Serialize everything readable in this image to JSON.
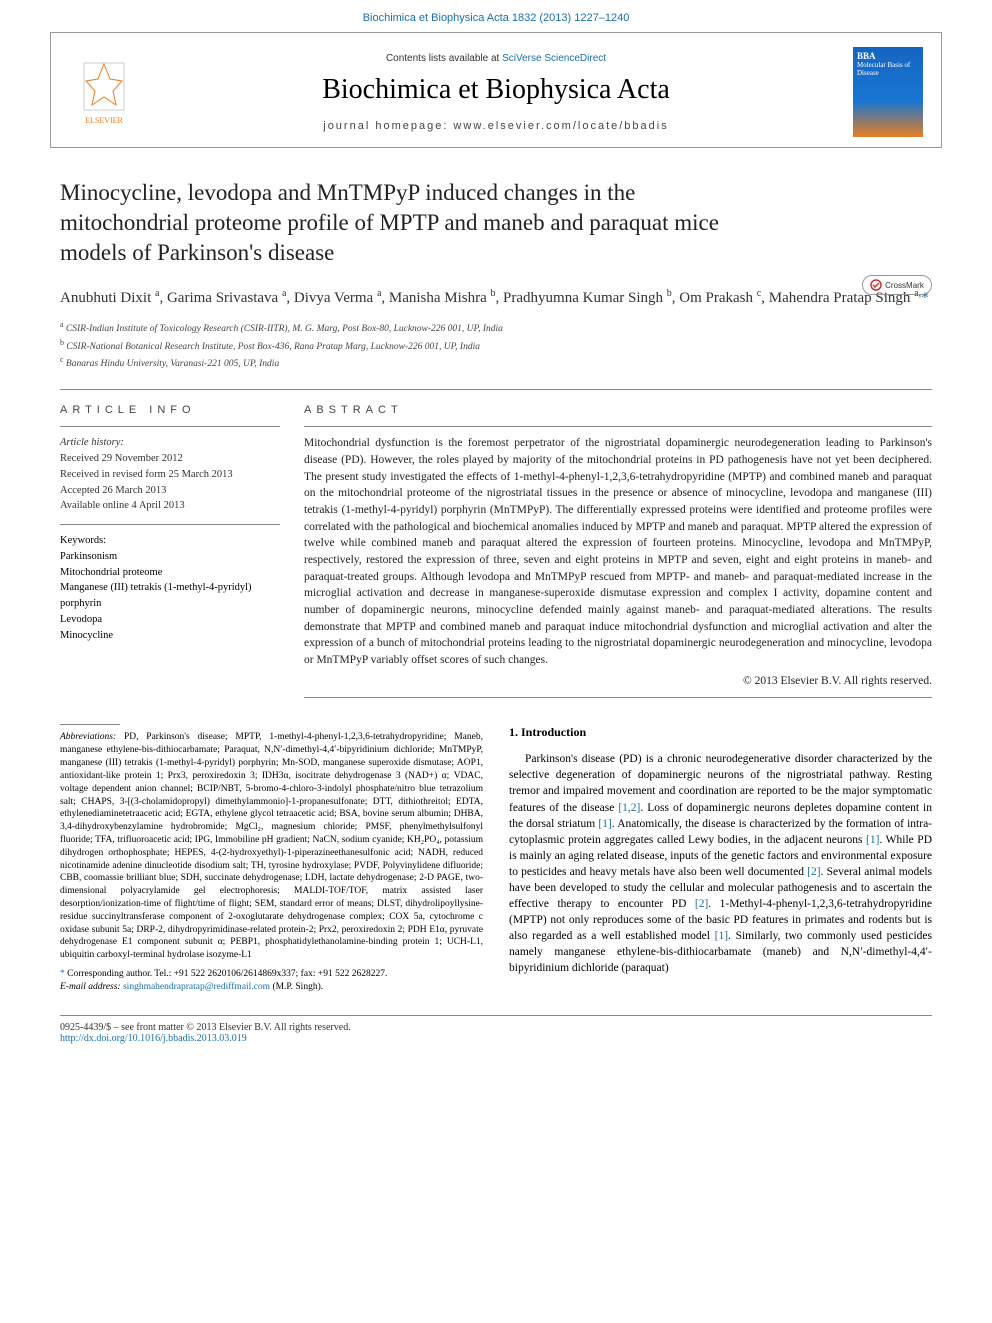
{
  "top_link": "Biochimica et Biophysica Acta 1832 (2013) 1227–1240",
  "header": {
    "contents_prefix": "Contents lists available at ",
    "contents_link": "SciVerse ScienceDirect",
    "journal_title": "Biochimica et Biophysica Acta",
    "homepage": "journal homepage: www.elsevier.com/locate/bbadis",
    "publisher": "ELSEVIER",
    "cover_label": "BBA",
    "cover_sub": "Molecular Basis of Disease"
  },
  "crossmark": "CrossMark",
  "title": "Minocycline, levodopa and MnTMPyP induced changes in the mitochondrial proteome profile of MPTP and maneb and paraquat mice models of Parkinson's disease",
  "authors_html": "Anubhuti Dixit <sup>a</sup>, Garima Srivastava <sup>a</sup>, Divya Verma <sup>a</sup>, Manisha Mishra <sup>b</sup>, Pradhyumna Kumar Singh <sup>b</sup>, Om Prakash <sup>c</sup>, Mahendra Pratap Singh <sup>a,</sup><span class='star'>*</span>",
  "affiliations": [
    {
      "sup": "a",
      "text": "CSIR-Indian Institute of Toxicology Research (CSIR-IITR), M. G. Marg, Post Box-80, Lucknow-226 001, UP, India"
    },
    {
      "sup": "b",
      "text": "CSIR-National Botanical Research Institute, Post Box-436, Rana Pratap Marg, Lucknow-226 001, UP, India"
    },
    {
      "sup": "c",
      "text": "Banaras Hindu University, Varanasi-221 005, UP, India"
    }
  ],
  "info": {
    "heading": "ARTICLE INFO",
    "history_label": "Article history:",
    "history": [
      "Received 29 November 2012",
      "Received in revised form 25 March 2013",
      "Accepted 26 March 2013",
      "Available online 4 April 2013"
    ],
    "keywords_label": "Keywords:",
    "keywords": [
      "Parkinsonism",
      "Mitochondrial proteome",
      "Manganese (III) tetrakis (1-methyl-4-pyridyl) porphyrin",
      "Levodopa",
      "Minocycline"
    ]
  },
  "abstract": {
    "heading": "ABSTRACT",
    "text": "Mitochondrial dysfunction is the foremost perpetrator of the nigrostriatal dopaminergic neurodegeneration leading to Parkinson's disease (PD). However, the roles played by majority of the mitochondrial proteins in PD pathogenesis have not yet been deciphered. The present study investigated the effects of 1-methyl-4-phenyl-1,2,3,6-tetrahydropyridine (MPTP) and combined maneb and paraquat on the mitochondrial proteome of the nigrostriatal tissues in the presence or absence of minocycline, levodopa and manganese (III) tetrakis (1-methyl-4-pyridyl) porphyrin (MnTMPyP). The differentially expressed proteins were identified and proteome profiles were correlated with the pathological and biochemical anomalies induced by MPTP and maneb and paraquat. MPTP altered the expression of twelve while combined maneb and paraquat altered the expression of fourteen proteins. Minocycline, levodopa and MnTMPyP, respectively, restored the expression of three, seven and eight proteins in MPTP and seven, eight and eight proteins in maneb- and paraquat-treated groups. Although levodopa and MnTMPyP rescued from MPTP- and maneb- and paraquat-mediated increase in the microglial activation and decrease in manganese-superoxide dismutase expression and complex I activity, dopamine content and number of dopaminergic neurons, minocycline defended mainly against maneb- and paraquat-mediated alterations. The results demonstrate that MPTP and combined maneb and paraquat induce mitochondrial dysfunction and microglial activation and alter the expression of a bunch of mitochondrial proteins leading to the nigrostriatal dopaminergic neurodegeneration and minocycline, levodopa or MnTMPyP variably offset scores of such changes.",
    "copyright": "© 2013 Elsevier B.V. All rights reserved."
  },
  "abbrev": {
    "label": "Abbreviations:",
    "text": "PD, Parkinson's disease; MPTP, 1-methyl-4-phenyl-1,2,3,6-tetrahydropyridine; Maneb, manganese ethylene-bis-dithiocarbamate; Paraquat, N,N′-dimethyl-4,4′-bipyridinium dichloride; MnTMPyP, manganese (III) tetrakis (1-methyl-4-pyridyl) porphyrin; Mn-SOD, manganese superoxide dismutase; AOP1, antioxidant-like protein 1; Prx3, peroxiredoxin 3; IDH3α, isocitrate dehydrogenase 3 (NAD+) α; VDAC, voltage dependent anion channel; BCIP/NBT, 5-bromo-4-chloro-3-indolyl phosphate/nitro blue tetrazolium salt; CHAPS, 3-[(3-cholamidopropyl) dimethylammonio]-1-propanesulfonate; DTT, dithiothreitol; EDTA, ethylenediaminetetraacetic acid; EGTA, ethylene glycol tetraacetic acid; BSA, bovine serum albumin; DHBA, 3,4-dihydroxybenzylamine hydrobromide; MgCl₂, magnesium chloride; PMSF, phenylmethylsulfonyl fluoride; TFA, trifluoroacetic acid; IPG, Immobiline pH gradient; NaCN, sodium cyanide; KH₂PO₄, potassium dihydrogen orthophosphate; HEPES, 4-(2-hydroxyethyl)-1-piperazineethanesulfonic acid; NADH, reduced nicotinamide adenine dinucleotide disodium salt; TH, tyrosine hydroxylase; PVDF, Polyvinylidene difluoride; CBB, coomassie brilliant blue; SDH, succinate dehydrogenase; LDH, lactate dehydrogenase; 2-D PAGE, two-dimensional polyacrylamide gel electrophoresis; MALDI-TOF/TOF, matrix assisted laser desorption/ionization-time of flight/time of flight; SEM, standard error of means; DLST, dihydrolipoyllysine-residue succinyltransferase component of 2-oxoglutarate dehydrogenase complex; COX 5a, cytochrome c oxidase subunit 5a; DRP-2, dihydropyrimidinase-related protein-2; Prx2, peroxiredoxin 2; PDH E1α, pyruvate dehydrogenase E1 component subunit α; PEBP1, phosphatidylethanolamine-binding protein 1; UCH-L1, ubiquitin carboxyl-terminal hydrolase isozyme-L1"
  },
  "corresponding": {
    "star": "*",
    "text": "Corresponding author. Tel.: +91 522 2620106/2614869x337; fax: +91 522 2628227.",
    "email_label": "E-mail address:",
    "email": "singhmahendrapratap@rediffmail.com",
    "email_suffix": "(M.P. Singh)."
  },
  "intro": {
    "heading": "1. Introduction",
    "text_html": "Parkinson's disease (PD) is a chronic neurodegenerative disorder characterized by the selective degeneration of dopaminergic neurons of the nigrostriatal pathway. Resting tremor and impaired movement and coordination are reported to be the major symptomatic features of the disease <a href='#'>[1,2]</a>. Loss of dopaminergic neurons depletes dopamine content in the dorsal striatum <a href='#'>[1]</a>. Anatomically, the disease is characterized by the formation of intra-cytoplasmic protein aggregates called Lewy bodies, in the adjacent neurons <a href='#'>[1]</a>. While PD is mainly an aging related disease, inputs of the genetic factors and environmental exposure to pesticides and heavy metals have also been well documented <a href='#'>[2]</a>. Several animal models have been developed to study the cellular and molecular pathogenesis and to ascertain the effective therapy to encounter PD <a href='#'>[2]</a>. 1-Methyl-4-phenyl-1,2,3,6-tetrahydropyridine (MPTP) not only reproduces some of the basic PD features in primates and rodents but is also regarded as a well established model <a href='#'>[1]</a>. Similarly, two commonly used pesticides namely manganese ethylene-bis-dithiocarbamate (maneb) and N,N′-dimethyl-4,4′-bipyridinium dichloride (paraquat)"
  },
  "footer": {
    "line1": "0925-4439/$ – see front matter © 2013 Elsevier B.V. All rights reserved.",
    "doi": "http://dx.doi.org/10.1016/j.bbadis.2013.03.019"
  },
  "colors": {
    "link": "#1a6faa",
    "rule": "#888888",
    "text": "#222222"
  }
}
